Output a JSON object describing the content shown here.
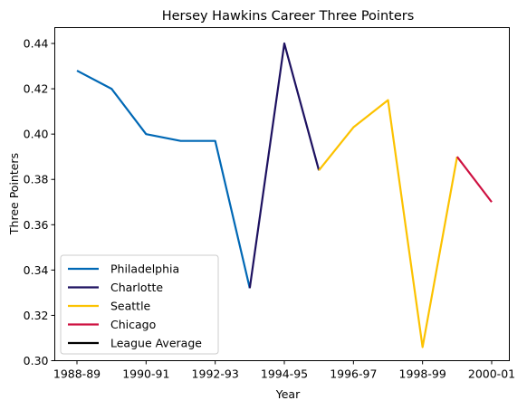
{
  "chart_data": {
    "type": "line",
    "title": "Hersey Hawkins Career Three Pointers",
    "xlabel": "Year",
    "ylabel": "Three Pointers",
    "x_categories": [
      "1988-89",
      "1989-90",
      "1990-91",
      "1991-92",
      "1992-93",
      "1993-94",
      "1994-95",
      "1995-96",
      "1996-97",
      "1997-98",
      "1998-99",
      "1999-00",
      "2000-01"
    ],
    "x_tick_labels": [
      "1988-89",
      "1990-91",
      "1992-93",
      "1994-95",
      "1996-97",
      "1998-99",
      "2000-01"
    ],
    "y_ticks": [
      "0.30",
      "0.32",
      "0.34",
      "0.36",
      "0.38",
      "0.40",
      "0.42",
      "0.44"
    ],
    "ylim": [
      0.3,
      0.447
    ],
    "grid": false,
    "legend_position": "lower-left",
    "series": [
      {
        "name": "Philadelphia",
        "color": "#0068b5",
        "points": [
          [
            "1988-89",
            0.428
          ],
          [
            "1989-90",
            0.42
          ],
          [
            "1990-91",
            0.4
          ],
          [
            "1991-92",
            0.397
          ],
          [
            "1992-93",
            0.397
          ],
          [
            "1993-94",
            0.332
          ]
        ]
      },
      {
        "name": "Charlotte",
        "color": "#1d1160",
        "points": [
          [
            "1993-94",
            0.332
          ],
          [
            "1994-95",
            0.44
          ],
          [
            "1995-96",
            0.384
          ]
        ]
      },
      {
        "name": "Seattle",
        "color": "#fcc200",
        "points": [
          [
            "1995-96",
            0.384
          ],
          [
            "1996-97",
            0.403
          ],
          [
            "1997-98",
            0.415
          ],
          [
            "1998-99",
            0.306
          ],
          [
            "1999-00",
            0.39
          ]
        ]
      },
      {
        "name": "Chicago",
        "color": "#ce1141",
        "points": [
          [
            "1999-00",
            0.39
          ],
          [
            "2000-01",
            0.37
          ]
        ]
      },
      {
        "name": "League Average",
        "color": "#000000",
        "points": []
      }
    ]
  }
}
